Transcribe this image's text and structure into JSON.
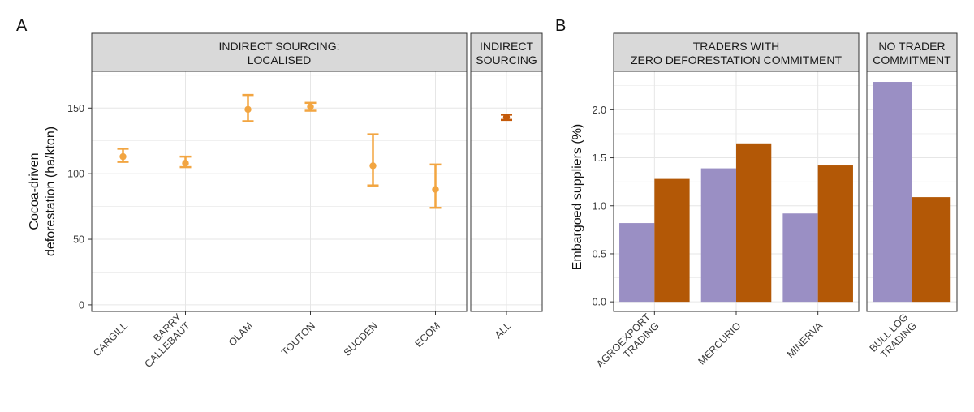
{
  "panel_labels": [
    "A",
    "B"
  ],
  "chart_data": [
    {
      "type": "scatter",
      "panel": "A",
      "ylabel_lines": [
        "Cocoa-driven",
        "deforestation (ha/kton)"
      ],
      "ylim": [
        -5,
        178
      ],
      "yticks": [
        0,
        50,
        100,
        150
      ],
      "grid": true,
      "facets": [
        {
          "strip_lines": [
            "INDIRECT SOURCING:",
            "LOCALISED"
          ],
          "color": "#F2A541",
          "points": [
            {
              "label_lines": [
                "CARGILL"
              ],
              "y": 113,
              "ymin": 109,
              "ymax": 119
            },
            {
              "label_lines": [
                "BARRY",
                "CALLEBAUT"
              ],
              "y": 108,
              "ymin": 105,
              "ymax": 113
            },
            {
              "label_lines": [
                "OLAM"
              ],
              "y": 149,
              "ymin": 140,
              "ymax": 160
            },
            {
              "label_lines": [
                "TOUTON"
              ],
              "y": 151,
              "ymin": 148,
              "ymax": 154
            },
            {
              "label_lines": [
                "SUCDEN"
              ],
              "y": 106,
              "ymin": 91,
              "ymax": 130
            },
            {
              "label_lines": [
                "ECOM"
              ],
              "y": 88,
              "ymin": 74,
              "ymax": 107
            }
          ]
        },
        {
          "strip_lines": [
            "INDIRECT",
            "SOURCING"
          ],
          "color": "#C45A0A",
          "points": [
            {
              "label_lines": [
                "ALL"
              ],
              "y": 143,
              "ymin": 141,
              "ymax": 145
            }
          ]
        }
      ]
    },
    {
      "type": "bar",
      "panel": "B",
      "ylabel_lines": [
        "Embargoed suppliers (%)"
      ],
      "ylim": [
        -0.1,
        2.4
      ],
      "yticks": [
        "0.0",
        "0.5",
        "1.0",
        "1.5",
        "2.0"
      ],
      "grid": true,
      "series_colors": [
        "#9A8FC4",
        "#B35806"
      ],
      "facets": [
        {
          "strip_lines": [
            "TRADERS WITH",
            "ZERO DEFORESTATION COMMITMENT"
          ],
          "groups": [
            {
              "label_lines": [
                "AGROEXPORT",
                "TRADING"
              ],
              "values": [
                0.82,
                1.28
              ]
            },
            {
              "label_lines": [
                "MERCURIO"
              ],
              "values": [
                1.39,
                1.65
              ]
            },
            {
              "label_lines": [
                "MINERVA"
              ],
              "values": [
                0.92,
                1.42
              ]
            }
          ]
        },
        {
          "strip_lines": [
            "NO TRADER",
            "COMMITMENT"
          ],
          "groups": [
            {
              "label_lines": [
                "BULL LOG",
                "TRADING"
              ],
              "values": [
                2.29,
                1.09
              ]
            }
          ]
        }
      ]
    }
  ]
}
